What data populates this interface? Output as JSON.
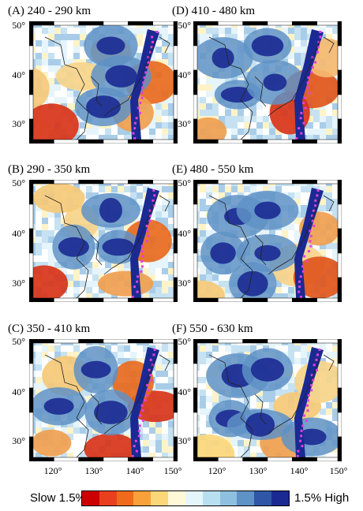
{
  "panels": [
    {
      "id": "A",
      "title": "(A) 240 - 290 km",
      "tone": [
        "#c41810",
        "#f5a04a",
        "#ffffff",
        "#8fb7d8",
        "#1a2a96"
      ]
    },
    {
      "id": "D",
      "title": "(D) 410 - 480 km",
      "tone": [
        "#c41810",
        "#f5a04a",
        "#ffffff",
        "#8fb7d8",
        "#1a2a96"
      ]
    },
    {
      "id": "B",
      "title": "(B) 290 - 350 km",
      "tone": [
        "#c41810",
        "#f5a04a",
        "#ffffff",
        "#8fb7d8",
        "#1a2a96"
      ]
    },
    {
      "id": "E",
      "title": "(E) 480 - 550 km",
      "tone": [
        "#c41810",
        "#f5a04a",
        "#ffffff",
        "#8fb7d8",
        "#1a2a96"
      ]
    },
    {
      "id": "C",
      "title": "(C) 350 - 410 km",
      "tone": [
        "#c41810",
        "#f5a04a",
        "#ffffff",
        "#8fb7d8",
        "#1a2a96"
      ]
    },
    {
      "id": "F",
      "title": "(F) 550 - 630 km",
      "tone": [
        "#c41810",
        "#f5a04a",
        "#ffffff",
        "#8fb7d8",
        "#1a2a96"
      ]
    }
  ],
  "lat_labels": [
    "50°",
    "40°",
    "30°"
  ],
  "lon_labels": [
    "120°",
    "130°",
    "140°",
    "150°"
  ],
  "legend": {
    "left_label": "Slow  1.5%",
    "right_label": "1.5% High",
    "colors": [
      "#cc0000",
      "#e8401e",
      "#f06a1c",
      "#f8a13a",
      "#fcd77a",
      "#fff9d8",
      "#e4f5fb",
      "#b8dff0",
      "#8fbfde",
      "#5f92c6",
      "#2f57a6",
      "#1b2a92"
    ]
  },
  "colors": {
    "slab_highlight": "#e040e0",
    "coastline": "#222222",
    "frame_black": "#000000",
    "frame_white": "#ffffff"
  }
}
